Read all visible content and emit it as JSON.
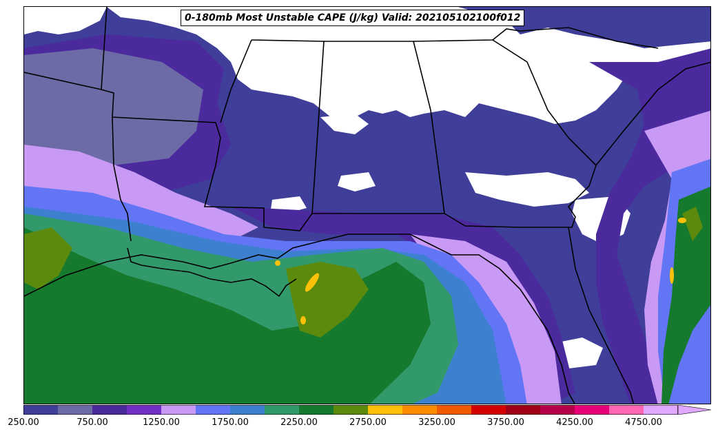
{
  "title": "0-180mb Most Unstable CAPE (J/kg) Valid: 202105102100f012",
  "colorbar": {
    "levels": [
      250,
      500,
      750,
      1000,
      1250,
      1500,
      1750,
      2000,
      2250,
      2500,
      2750,
      3000,
      3250,
      3500,
      3750,
      4000,
      4250,
      4500,
      4750,
      5000
    ],
    "colors": [
      "#3f3f99",
      "#6c6ba6",
      "#4b2a9e",
      "#7430c6",
      "#c89af5",
      "#6175f5",
      "#3d80cf",
      "#329a6a",
      "#167a2e",
      "#5c8a0c",
      "#ffc107",
      "#ff8c00",
      "#f05a00",
      "#d40000",
      "#a00018",
      "#b8004a",
      "#e8007a",
      "#ff66b3",
      "#e0a8ff"
    ],
    "tick_labels": [
      "250.00",
      "750.00",
      "1250.00",
      "1750.00",
      "2250.00",
      "2750.00",
      "3250.00",
      "3750.00",
      "4250.00",
      "4750.00"
    ],
    "tick_values": [
      250,
      750,
      1250,
      1750,
      2250,
      2750,
      3250,
      3750,
      4250,
      4750
    ],
    "extend": "max"
  },
  "map": {
    "field": "most-unstable-cape",
    "units": "J/kg",
    "region": "us-gulf-coast-southeast"
  }
}
